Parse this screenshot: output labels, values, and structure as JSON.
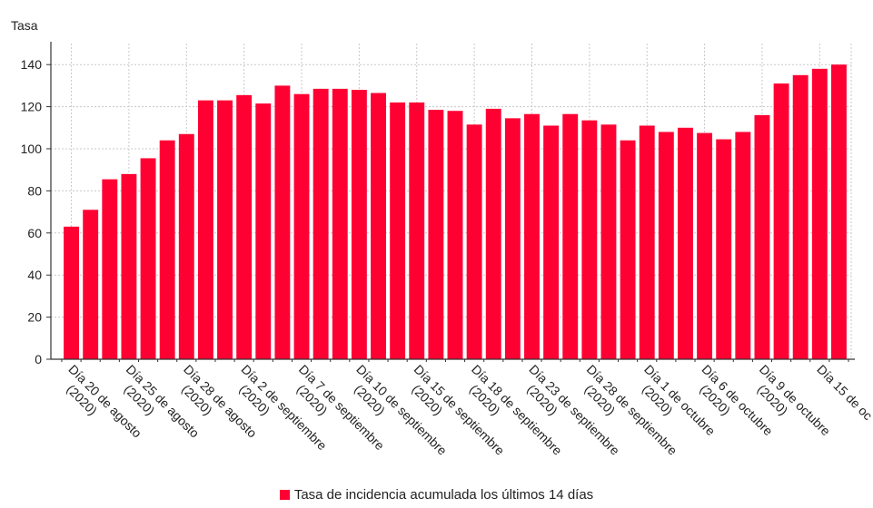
{
  "chart_data": {
    "type": "bar",
    "ylabel": "Tasa",
    "ylim": [
      0,
      150
    ],
    "yticks": [
      0,
      20,
      40,
      60,
      80,
      100,
      120,
      140
    ],
    "grid": true,
    "legend_position": "bottom-center",
    "series": [
      {
        "name": "Tasa de incidencia acumulada los últimos 14 días",
        "color": "#ff0033",
        "values": [
          63,
          71,
          85.5,
          88,
          95.5,
          104,
          107,
          123,
          123,
          125.5,
          121.5,
          130,
          126,
          128.5,
          128.5,
          128,
          126.5,
          122,
          122,
          118.5,
          118,
          111.5,
          119,
          114.5,
          116.5,
          111,
          116.5,
          113.5,
          111.5,
          104,
          111,
          108,
          110,
          107.5,
          104.5,
          108,
          116,
          131,
          135,
          138,
          140
        ]
      }
    ],
    "categories": [
      "Día 20 de agosto (2020)",
      "",
      "",
      "Día 25 de agosto (2020)",
      "",
      "",
      "Día 28 de agosto (2020)",
      "",
      "",
      "Día 2 de septiembre (2020)",
      "",
      "",
      "Día 7 de septiembre (2020)",
      "",
      "",
      "Día 10 de septiembre (2020)",
      "",
      "",
      "Día 15 de septiembre (2020)",
      "",
      "",
      "Día 18 de septiembre (2020)",
      "",
      "",
      "Día 23 de septiembre (2020)",
      "",
      "",
      "Día 28 de septiembre (2020)",
      "",
      "",
      "Día 1 de octubre (2020)",
      "",
      "",
      "Día 6 de octubre (2020)",
      "",
      "",
      "Día 9 de octubre (2020)",
      "",
      "",
      "Día 15 de oc",
      ""
    ],
    "xtick_labels": [
      {
        "index": 0,
        "line1": "Día 20 de agosto",
        "line2": "(2020)"
      },
      {
        "index": 3,
        "line1": "Día 25 de agosto",
        "line2": "(2020)"
      },
      {
        "index": 6,
        "line1": "Día 28 de agosto",
        "line2": "(2020)"
      },
      {
        "index": 9,
        "line1": "Día 2 de septiembre",
        "line2": "(2020)"
      },
      {
        "index": 12,
        "line1": "Día 7 de septiembre",
        "line2": "(2020)"
      },
      {
        "index": 15,
        "line1": "Día 10 de septiembre",
        "line2": "(2020)"
      },
      {
        "index": 18,
        "line1": "Día 15 de septiembre",
        "line2": "(2020)"
      },
      {
        "index": 21,
        "line1": "Día 18 de septiembre",
        "line2": "(2020)"
      },
      {
        "index": 24,
        "line1": "Día 23 de septiembre",
        "line2": "(2020)"
      },
      {
        "index": 27,
        "line1": "Día 28 de septiembre",
        "line2": "(2020)"
      },
      {
        "index": 30,
        "line1": "Día 1 de octubre",
        "line2": "(2020)"
      },
      {
        "index": 33,
        "line1": "Día 6 de octubre",
        "line2": "(2020)"
      },
      {
        "index": 36,
        "line1": "Día 9 de octubre",
        "line2": "(2020)"
      },
      {
        "index": 39,
        "line1": "Día 15 de oc",
        "line2": ""
      }
    ]
  }
}
